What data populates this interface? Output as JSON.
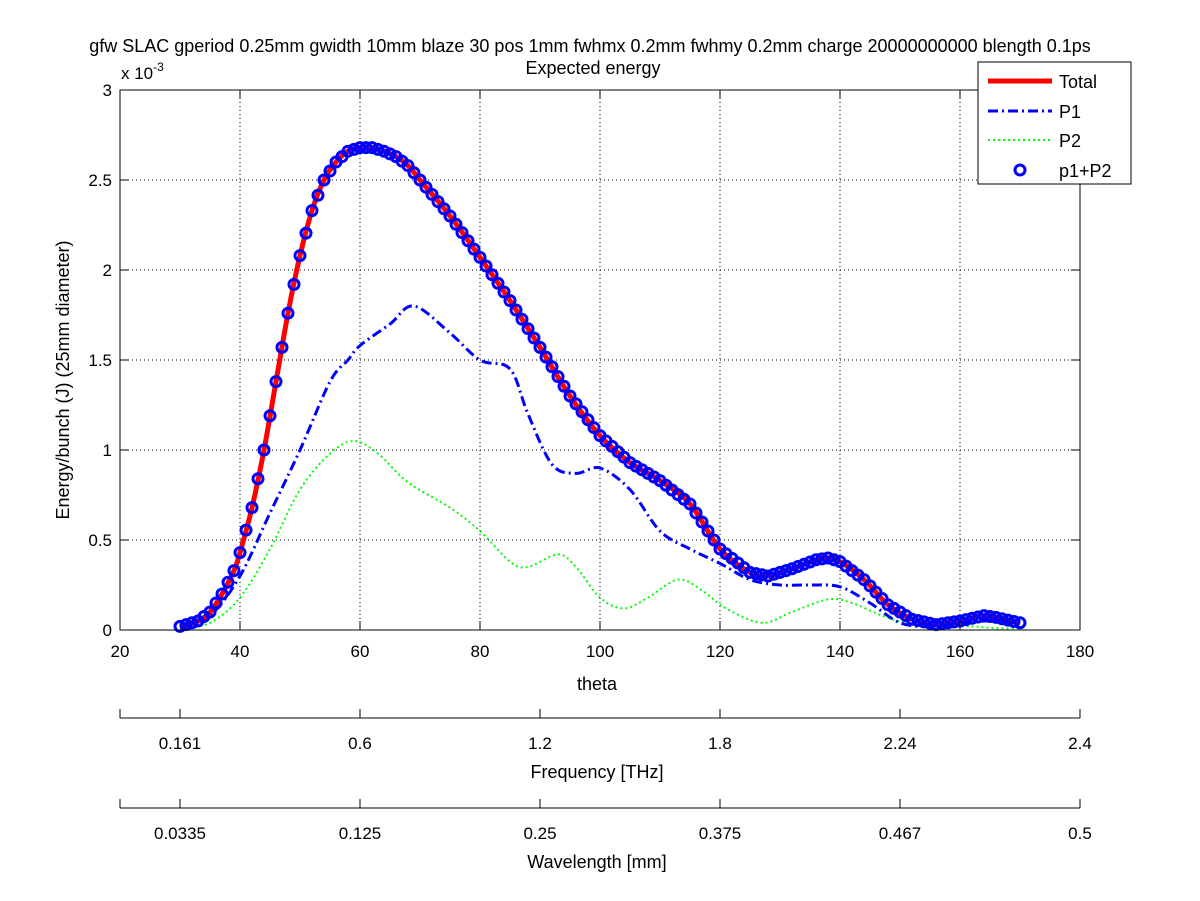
{
  "chart_data": {
    "type": "line",
    "title": "gfw SLAC gperiod 0.25mm gwidth 10mm blaze 30 pos 1mm fwhmx 0.2mm fwhmy 0.2mm charge 20000000000 blength 0.1ps",
    "subtitle": "Expected energy",
    "xlabel": "theta",
    "ylabel": "Energy/bunch (J) (25mm diameter)",
    "y_exponent_label": "x 10",
    "y_exponent_power": "-3",
    "xlim": [
      20,
      180
    ],
    "ylim": [
      0,
      3
    ],
    "x_ticks": [
      "20",
      "40",
      "60",
      "80",
      "100",
      "120",
      "140",
      "160",
      "180"
    ],
    "y_ticks": [
      "0",
      "0.5",
      "1",
      "1.5",
      "2",
      "2.5",
      "3"
    ],
    "grid": true,
    "legend_position": "top-right",
    "series": [
      {
        "name": "Total",
        "style": "solid",
        "color": "#ff0000",
        "x": [
          30,
          33,
          35,
          37,
          39,
          40,
          42,
          44,
          46,
          48,
          50,
          52,
          54,
          56,
          58,
          60,
          62,
          64,
          66,
          68,
          70,
          75,
          80,
          85,
          90,
          95,
          100,
          105,
          110,
          115,
          120,
          125,
          128,
          132,
          136,
          138,
          140,
          144,
          148,
          152,
          156,
          160,
          164,
          166,
          170
        ],
        "y": [
          0.02,
          0.05,
          0.1,
          0.2,
          0.33,
          0.43,
          0.68,
          1.0,
          1.38,
          1.76,
          2.08,
          2.33,
          2.5,
          2.6,
          2.66,
          2.68,
          2.68,
          2.66,
          2.63,
          2.58,
          2.5,
          2.3,
          2.07,
          1.83,
          1.57,
          1.3,
          1.08,
          0.93,
          0.83,
          0.7,
          0.45,
          0.32,
          0.3,
          0.34,
          0.39,
          0.4,
          0.38,
          0.28,
          0.14,
          0.06,
          0.03,
          0.05,
          0.08,
          0.07,
          0.04
        ]
      },
      {
        "name": "P1",
        "style": "dashdot",
        "color": "#0000ff",
        "x": [
          30,
          35,
          40,
          45,
          50,
          55,
          58,
          60,
          65,
          69,
          75,
          80,
          85,
          88,
          92,
          96,
          100,
          105,
          110,
          115,
          120,
          125,
          130,
          135,
          140,
          145,
          150,
          155,
          160,
          165,
          170
        ],
        "y": [
          0.01,
          0.08,
          0.3,
          0.65,
          1.0,
          1.38,
          1.5,
          1.58,
          1.7,
          1.8,
          1.65,
          1.5,
          1.45,
          1.2,
          0.92,
          0.87,
          0.9,
          0.78,
          0.55,
          0.45,
          0.37,
          0.28,
          0.25,
          0.25,
          0.24,
          0.15,
          0.04,
          0.02,
          0.04,
          0.05,
          0.03
        ]
      },
      {
        "name": "P2",
        "style": "dotted",
        "color": "#00ff00",
        "x": [
          30,
          35,
          40,
          45,
          50,
          55,
          59,
          63,
          68,
          75,
          80,
          85,
          88,
          93,
          96,
          100,
          104,
          108,
          113,
          117,
          121,
          127,
          132,
          138,
          142,
          147,
          152,
          157,
          162,
          166,
          170
        ],
        "y": [
          0.01,
          0.04,
          0.18,
          0.45,
          0.78,
          0.98,
          1.05,
          0.98,
          0.82,
          0.68,
          0.55,
          0.38,
          0.35,
          0.42,
          0.35,
          0.18,
          0.12,
          0.18,
          0.28,
          0.22,
          0.12,
          0.04,
          0.1,
          0.17,
          0.15,
          0.08,
          0.03,
          0.02,
          0.02,
          0.01,
          0.01
        ]
      },
      {
        "name": "p1+P2",
        "style": "circles",
        "color": "#0000ff"
      }
    ],
    "secondary_axes": [
      {
        "label": "Frequency [THz]",
        "ticks": [
          "0.161",
          "0.6",
          "1.2",
          "1.8",
          "2.24",
          "2.4"
        ],
        "tick_theta": [
          30,
          60,
          90,
          120,
          150,
          180
        ]
      },
      {
        "label": "Wavelength [mm]",
        "ticks": [
          "0.0335",
          "0.125",
          "0.25",
          "0.375",
          "0.467",
          "0.5"
        ],
        "tick_theta": [
          30,
          60,
          90,
          120,
          150,
          180
        ]
      }
    ]
  }
}
